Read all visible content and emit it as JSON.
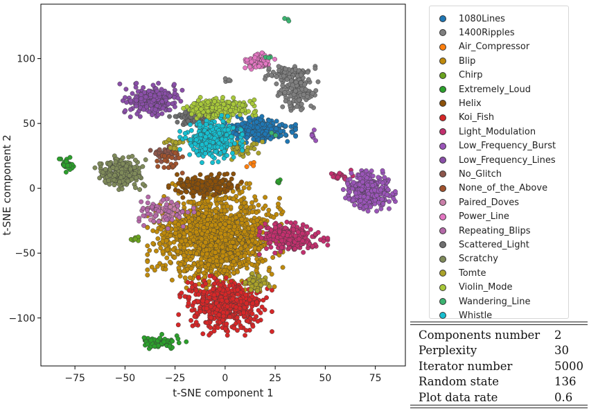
{
  "chart_data": {
    "type": "scatter",
    "xlabel": "t-SNE component 1",
    "ylabel": "t-SNE component 2",
    "xlim": [
      -92,
      90
    ],
    "ylim": [
      -137,
      142
    ],
    "xticks": [
      -75,
      -50,
      -25,
      0,
      25,
      50,
      75
    ],
    "yticks": [
      -100,
      -50,
      0,
      50,
      100
    ],
    "grid": false,
    "legend_position": "outside-right",
    "series": [
      {
        "name": "1080Lines",
        "color": "#1f77b4",
        "clusters": [
          {
            "cx": 17,
            "cy": 45,
            "sx": 7,
            "sy": 4,
            "n": 320
          }
        ]
      },
      {
        "name": "1400Ripples",
        "color": "#7f7f7f",
        "clusters": [
          {
            "cx": 32,
            "cy": 88,
            "sx": 5,
            "sy": 3,
            "n": 80
          },
          {
            "cx": 36,
            "cy": 73,
            "sx": 4,
            "sy": 6,
            "n": 120
          },
          {
            "cx": 1,
            "cy": 83,
            "sx": 1,
            "sy": 1,
            "n": 5
          }
        ]
      },
      {
        "name": "Air_Compressor",
        "color": "#ff7f0e",
        "clusters": [
          {
            "cx": 13,
            "cy": 19,
            "sx": 1,
            "sy": 1.5,
            "n": 4
          }
        ]
      },
      {
        "name": "Blip",
        "color": "#bf8a0c",
        "clusters": [
          {
            "cx": -5,
            "cy": -38,
            "sx": 13,
            "sy": 16,
            "n": 1400
          }
        ]
      },
      {
        "name": "Chirp",
        "color": "#6aa31f",
        "clusters": [
          {
            "cx": -45,
            "cy": -38,
            "sx": 1.5,
            "sy": 1.5,
            "n": 8
          }
        ]
      },
      {
        "name": "Extremely_Loud",
        "color": "#2ca02c",
        "clusters": [
          {
            "cx": -32,
            "cy": -119,
            "sx": 5,
            "sy": 2.5,
            "n": 80
          },
          {
            "cx": -79,
            "cy": 18,
            "sx": 2,
            "sy": 4,
            "n": 30
          },
          {
            "cx": 27,
            "cy": 5,
            "sx": 1,
            "sy": 1.5,
            "n": 6
          }
        ]
      },
      {
        "name": "Helix",
        "color": "#8c510a",
        "clusters": [
          {
            "cx": -10,
            "cy": 2,
            "sx": 7,
            "sy": 3.5,
            "n": 200
          }
        ]
      },
      {
        "name": "Koi_Fish",
        "color": "#d62728",
        "clusters": [
          {
            "cx": 0,
            "cy": -90,
            "sx": 9,
            "sy": 9,
            "n": 500
          }
        ]
      },
      {
        "name": "Light_Modulation",
        "color": "#c2306e",
        "clusters": [
          {
            "cx": 33,
            "cy": -38,
            "sx": 7,
            "sy": 5,
            "n": 250
          },
          {
            "cx": 57,
            "cy": 10,
            "sx": 3,
            "sy": 2,
            "n": 20
          }
        ]
      },
      {
        "name": "Low_Frequency_Burst",
        "color": "#9a55b8",
        "clusters": [
          {
            "cx": 72,
            "cy": -2,
            "sx": 5,
            "sy": 6,
            "n": 350
          },
          {
            "cx": 43,
            "cy": 40,
            "sx": 1,
            "sy": 2,
            "n": 8
          }
        ]
      },
      {
        "name": "Low_Frequency_Lines",
        "color": "#8a4fa8",
        "clusters": [
          {
            "cx": -37,
            "cy": 68,
            "sx": 6,
            "sy": 5,
            "n": 250
          }
        ]
      },
      {
        "name": "No_Glitch",
        "color": "#8c564b",
        "clusters": [
          {
            "cx": -30,
            "cy": 27,
            "sx": 3,
            "sy": 3,
            "n": 40
          }
        ]
      },
      {
        "name": "None_of_the_Above",
        "color": "#a0522d",
        "clusters": [
          {
            "cx": -28,
            "cy": 22,
            "sx": 4,
            "sy": 4,
            "n": 25
          }
        ]
      },
      {
        "name": "Paired_Doves",
        "color": "#c97fa8",
        "clusters": [
          {
            "cx": -30,
            "cy": -18,
            "sx": 4,
            "sy": 4,
            "n": 40
          }
        ]
      },
      {
        "name": "Power_Line",
        "color": "#e377c2",
        "clusters": [
          {
            "cx": 17,
            "cy": 98,
            "sx": 3,
            "sy": 2.5,
            "n": 90
          }
        ]
      },
      {
        "name": "Repeating_Blips",
        "color": "#b569a8",
        "clusters": [
          {
            "cx": -33,
            "cy": -18,
            "sx": 9,
            "sy": 6,
            "n": 45
          }
        ]
      },
      {
        "name": "Scattered_Light",
        "color": "#6f6f6f",
        "clusters": [
          {
            "cx": -15,
            "cy": 55,
            "sx": 5,
            "sy": 3,
            "n": 100
          }
        ]
      },
      {
        "name": "Scratchy",
        "color": "#7f8a5a",
        "clusters": [
          {
            "cx": -52,
            "cy": 12,
            "sx": 5,
            "sy": 5,
            "n": 220
          }
        ]
      },
      {
        "name": "Tomte",
        "color": "#aaa22a",
        "clusters": [
          {
            "cx": 16,
            "cy": -73,
            "sx": 3,
            "sy": 3,
            "n": 50
          },
          {
            "cx": 6,
            "cy": 30,
            "sx": 5,
            "sy": 3,
            "n": 40
          },
          {
            "cx": -25,
            "cy": 35,
            "sx": 3,
            "sy": 2,
            "n": 20
          }
        ]
      },
      {
        "name": "Violin_Mode",
        "color": "#a8c83a",
        "clusters": [
          {
            "cx": -3,
            "cy": 61,
            "sx": 7,
            "sy": 3.5,
            "n": 260
          }
        ]
      },
      {
        "name": "Wandering_Line",
        "color": "#3cb371",
        "clusters": [
          {
            "cx": 31,
            "cy": 130,
            "sx": 1,
            "sy": 1,
            "n": 3
          },
          {
            "cx": 22,
            "cy": 101,
            "sx": 1,
            "sy": 1,
            "n": 3
          },
          {
            "cx": 25,
            "cy": 42,
            "sx": 1,
            "sy": 1,
            "n": 3
          }
        ]
      },
      {
        "name": "Whistle",
        "color": "#17becf",
        "clusters": [
          {
            "cx": -7,
            "cy": 38,
            "sx": 6,
            "sy": 7,
            "n": 350
          }
        ]
      }
    ]
  },
  "params_table": {
    "rows": [
      {
        "name": "Components number",
        "value": "2"
      },
      {
        "name": "Perplexity",
        "value": "30"
      },
      {
        "name": "Iterator number",
        "value": "5000"
      },
      {
        "name": "Random state",
        "value": "136"
      },
      {
        "name": "Plot data rate",
        "value": "0.6"
      }
    ]
  }
}
